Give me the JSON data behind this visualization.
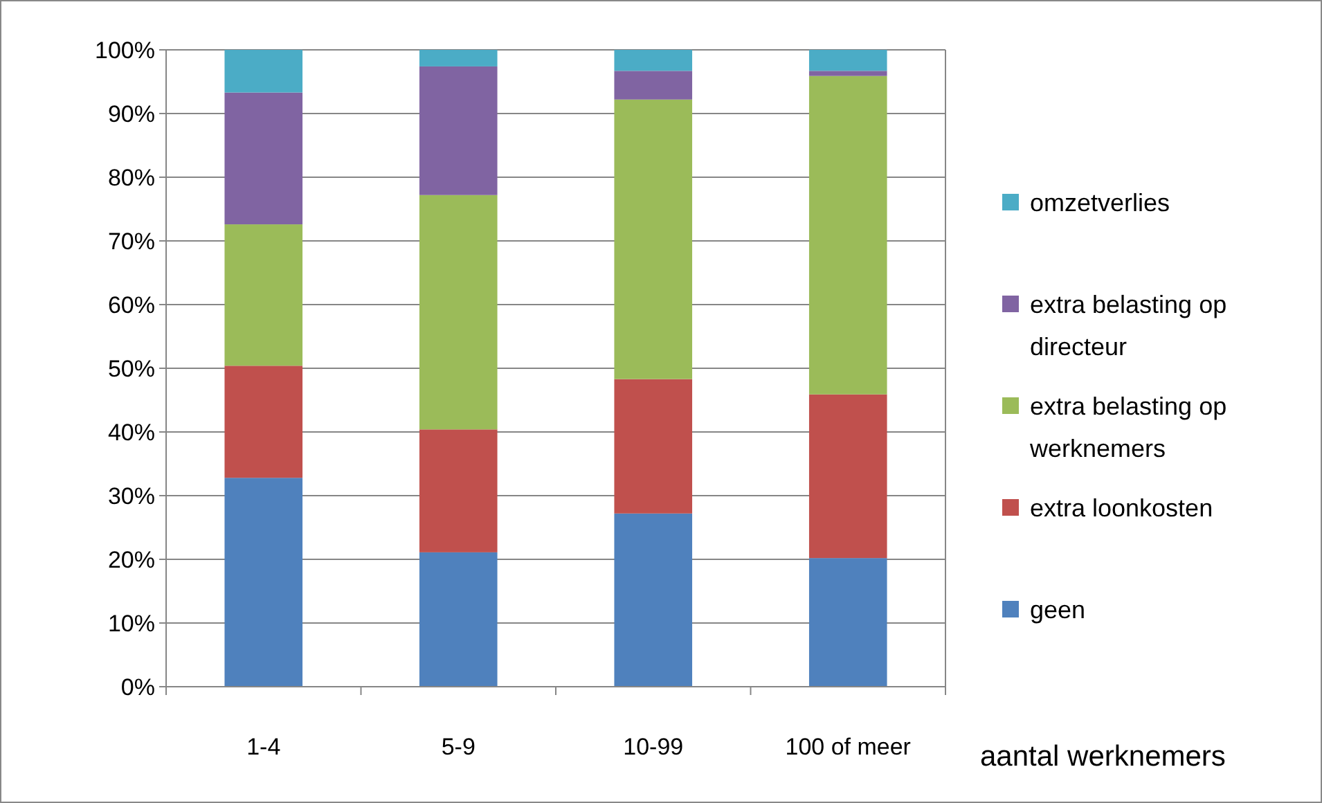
{
  "chart_data": {
    "type": "bar",
    "stacked": true,
    "xlabel": "aantal werknemers",
    "categories": [
      "1-4",
      "5-9",
      "10-99",
      "100 of meer"
    ],
    "series": [
      {
        "name": "geen",
        "color": "#4f81bd",
        "values": [
          32.8,
          21.1,
          27.2,
          20.2
        ]
      },
      {
        "name": "extra loonkosten",
        "color": "#c0504d",
        "values": [
          17.6,
          19.3,
          21.1,
          25.7
        ]
      },
      {
        "name": "extra belasting op werknemers",
        "color": "#9bbb59",
        "values": [
          22.2,
          36.8,
          43.9,
          50.0
        ]
      },
      {
        "name": "extra belasting op directeur",
        "color": "#8064a2",
        "values": [
          20.7,
          20.2,
          4.5,
          0.8
        ]
      },
      {
        "name": "omzetverlies",
        "color": "#4bacc6",
        "values": [
          6.7,
          2.6,
          3.3,
          3.3
        ]
      }
    ],
    "ylim": [
      0,
      100
    ],
    "yticks": [
      {
        "value": 0,
        "label": "0%"
      },
      {
        "value": 10,
        "label": "10%"
      },
      {
        "value": 20,
        "label": "20%"
      },
      {
        "value": 30,
        "label": "30%"
      },
      {
        "value": 40,
        "label": "40%"
      },
      {
        "value": 50,
        "label": "50%"
      },
      {
        "value": 60,
        "label": "60%"
      },
      {
        "value": 70,
        "label": "70%"
      },
      {
        "value": 80,
        "label": "80%"
      },
      {
        "value": 90,
        "label": "90%"
      },
      {
        "value": 100,
        "label": "100%"
      }
    ],
    "grid": "y",
    "legend": "right"
  }
}
